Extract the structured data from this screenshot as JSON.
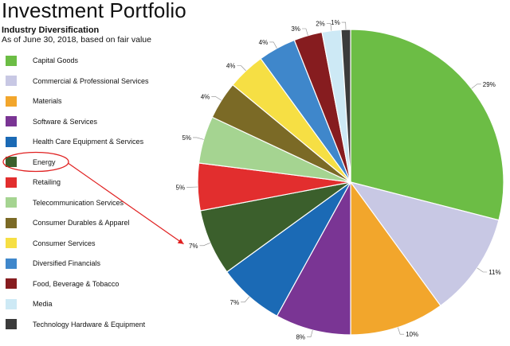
{
  "header": {
    "title": "Investment Portfolio",
    "subtitle": "Industry Diversification",
    "as_of": "As of June 30, 2018, based on fair value"
  },
  "chart_data": {
    "type": "pie",
    "title": "Investment Portfolio",
    "subtitle": "Industry Diversification",
    "note": "As of June 30, 2018, based on fair value",
    "legend_position": "left",
    "slices": [
      {
        "label": "Capital Goods",
        "value": 29,
        "value_label": "29%",
        "color": "#6cbd45"
      },
      {
        "label": "Commercial & Professional Services",
        "value": 11,
        "value_label": "11%",
        "color": "#c8c8e4"
      },
      {
        "label": "Materials",
        "value": 10,
        "value_label": "10%",
        "color": "#f2a62c"
      },
      {
        "label": "Software & Services",
        "value": 8,
        "value_label": "8%",
        "color": "#7a3594"
      },
      {
        "label": "Health Care Equipment & Services",
        "value": 7,
        "value_label": "7%",
        "color": "#1b6ab5"
      },
      {
        "label": "Energy",
        "value": 7,
        "value_label": "7%",
        "color": "#3b5f2c"
      },
      {
        "label": "Retailing",
        "value": 5,
        "value_label": "5%",
        "color": "#e22e2e"
      },
      {
        "label": "Telecommunication Services",
        "value": 5,
        "value_label": "5%",
        "color": "#a5d491"
      },
      {
        "label": "Consumer Durables & Apparel",
        "value": 4,
        "value_label": "4%",
        "color": "#7b6a26"
      },
      {
        "label": "Consumer Services",
        "value": 4,
        "value_label": "4%",
        "color": "#f6df44"
      },
      {
        "label": "Diversified Financials",
        "value": 4,
        "value_label": "4%",
        "color": "#3f87cb"
      },
      {
        "label": "Food, Beverage & Tobacco",
        "value": 3,
        "value_label": "3%",
        "color": "#861c1f"
      },
      {
        "label": "Media",
        "value": 2,
        "value_label": "2%",
        "color": "#cde9f5"
      },
      {
        "label": "Technology Hardware & Equipment",
        "value": 1,
        "value_label": "1%",
        "color": "#3b3b3b"
      }
    ],
    "highlight": {
      "label": "Energy",
      "circle_color": "#e02020",
      "arrow_color": "#e02020"
    }
  }
}
